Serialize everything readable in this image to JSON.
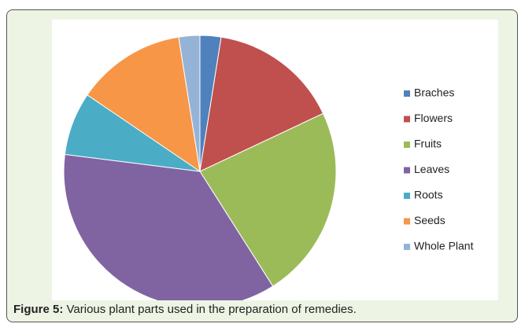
{
  "chart_data": {
    "type": "pie",
    "categories": [
      "Braches",
      "Flowers",
      "Fruits",
      "Leaves",
      "Roots",
      "Seeds",
      "Whole Plant"
    ],
    "values": [
      2.5,
      15.5,
      23,
      36,
      7.5,
      13,
      2.5
    ],
    "colors": [
      "#4f81bd",
      "#c0504d",
      "#9bbb59",
      "#8064a2",
      "#4bacc6",
      "#f79646",
      "#95b3d7"
    ],
    "legend": "right"
  },
  "caption": {
    "label": "Figure 5:",
    "text": "Various plant parts used in the preparation of remedies."
  }
}
